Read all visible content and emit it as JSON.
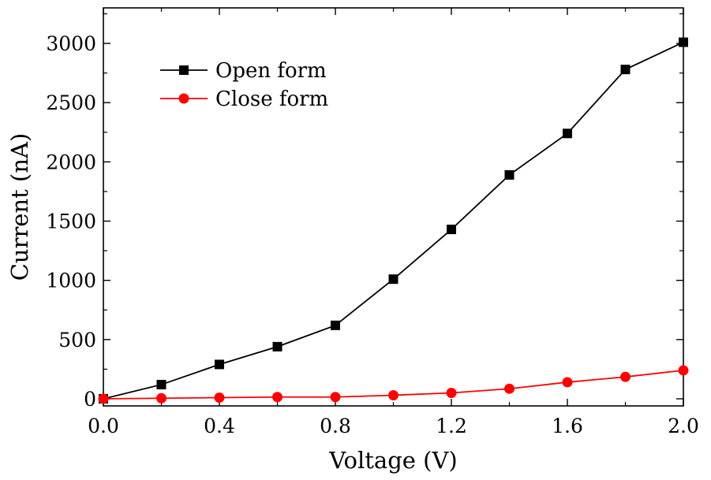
{
  "chart_data": {
    "type": "line",
    "xlabel": "Voltage (V)",
    "ylabel": "Current (nA)",
    "xlim": [
      0.0,
      2.0
    ],
    "ylim": [
      -60,
      3300
    ],
    "x_ticks": [
      0.0,
      0.4,
      0.8,
      1.2,
      1.6,
      2.0
    ],
    "x_tick_labels": [
      "0.0",
      "0.4",
      "0.8",
      "1.2",
      "1.6",
      "2.0"
    ],
    "x_minor_ticks": [
      0.2,
      0.6,
      1.0,
      1.4,
      1.8
    ],
    "y_ticks": [
      0,
      500,
      1000,
      1500,
      2000,
      2500,
      3000
    ],
    "y_tick_labels": [
      "0",
      "500",
      "1000",
      "1500",
      "2000",
      "2500",
      "3000"
    ],
    "y_minor_ticks": [
      250,
      750,
      1250,
      1750,
      2250,
      2750,
      3250
    ],
    "grid": false,
    "legend_position": "top-left",
    "x": [
      0.0,
      0.2,
      0.4,
      0.6,
      0.8,
      1.0,
      1.2,
      1.4,
      1.6,
      1.8,
      2.0
    ],
    "series": [
      {
        "name": "Open form",
        "color": "#000000",
        "marker": "square",
        "values": [
          0,
          120,
          290,
          440,
          620,
          1010,
          1430,
          1890,
          2240,
          2780,
          3010
        ]
      },
      {
        "name": "Close form",
        "color": "#ff0000",
        "marker": "circle",
        "values": [
          0,
          5,
          10,
          15,
          15,
          30,
          50,
          85,
          140,
          185,
          240
        ]
      }
    ]
  }
}
